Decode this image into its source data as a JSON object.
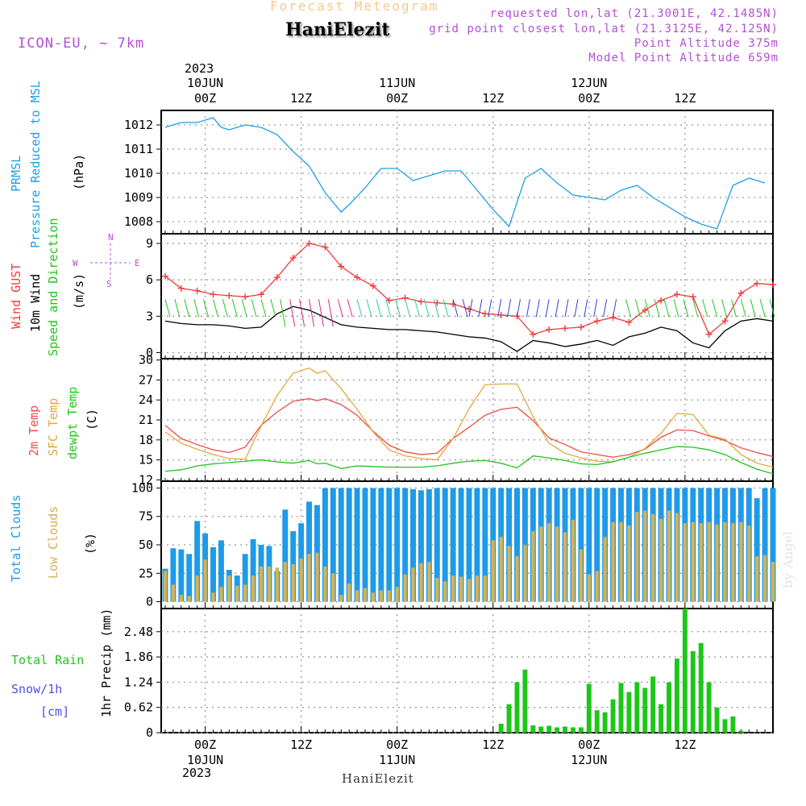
{
  "header": {
    "title": "Forecast Meteogram",
    "station": "HaniElezit",
    "model": "ICON-EU, ~ 7km",
    "requested": "requested lon,lat (21.3001E, 42.1485N)",
    "gridpoint": "grid point closest lon,lat (21.3125E, 42.125N)",
    "point_alt": "Point Altitude 375m",
    "model_alt": "Model Point Altitude 659m",
    "watermark": "by Angel"
  },
  "time_axis": {
    "top_year": "2023",
    "ticks": [
      {
        "hour": 0,
        "top": [
          "10JUN",
          "00Z"
        ],
        "bottom": [
          "00Z",
          "10JUN"
        ]
      },
      {
        "hour": 12,
        "top": [
          "12Z"
        ],
        "bottom": [
          "12Z"
        ]
      },
      {
        "hour": 24,
        "top": [
          "11JUN",
          "00Z"
        ],
        "bottom": [
          "00Z",
          "11JUN"
        ]
      },
      {
        "hour": 36,
        "top": [
          "12Z"
        ],
        "bottom": [
          "12Z"
        ]
      },
      {
        "hour": 48,
        "top": [
          "12JUN",
          "00Z"
        ],
        "bottom": [
          "00Z",
          "12JUN"
        ]
      },
      {
        "hour": 60,
        "top": [
          "12Z"
        ],
        "bottom": [
          "12Z"
        ]
      }
    ],
    "bottom_year": "2023",
    "range_hours": [
      -5.5,
      71
    ]
  },
  "panel_labels": {
    "pressure": {
      "l1": "PRMSL",
      "l2": "Pressure Reduced to MSL",
      "unit": "(hPa)"
    },
    "wind": {
      "l1": "Wind GUST",
      "l2": "10m Wind",
      "l3": "Speed and Direction",
      "unit": "(m/s)",
      "compass_n": "N",
      "compass_s": "S",
      "compass_w": "W",
      "compass_e": "E"
    },
    "temp": {
      "l1": "2m Temp",
      "l2": "SFC Temp",
      "l3": "dewpt Temp",
      "unit": "(C)"
    },
    "clouds": {
      "l1": "Total Clouds",
      "l2": "Low Clouds",
      "unit": "(%)"
    },
    "precip": {
      "l1": "Total  Rain",
      "l2": "Snow/1h",
      "l3": "[cm]",
      "unit": "1hr Precip (mm)"
    }
  },
  "colors": {
    "pressure": "#1e9fe6",
    "gust": "#f03c3c",
    "wind": "#000000",
    "t2m": "#ef4b47",
    "tsfc": "#e3a73f",
    "dewpt": "#22c41c",
    "total_clouds": "#1f9ae8",
    "low_clouds": "#d2b256",
    "rain": "#1fc61a",
    "grid": "#9a9a9a"
  },
  "chart_data": [
    {
      "type": "line",
      "title": "PRMSL Pressure Reduced to MSL",
      "ylabel": "hPa",
      "ylim": [
        1007.5,
        1012.6
      ],
      "yticks": [
        1008,
        1009,
        1010,
        1011,
        1012
      ],
      "x_hours": [
        -5,
        -3,
        -1,
        1,
        2,
        3,
        5,
        7,
        9,
        11,
        13,
        15,
        17,
        18,
        20,
        22,
        24,
        26,
        28,
        30,
        32,
        34,
        36,
        38,
        40,
        42,
        44,
        46,
        48,
        50,
        52,
        54,
        56,
        58,
        60,
        62,
        64,
        66,
        68,
        70
      ],
      "series": [
        {
          "name": "PRMSL",
          "values": [
            1011.9,
            1012.1,
            1012.1,
            1012.3,
            1011.9,
            1011.8,
            1012.0,
            1011.9,
            1011.6,
            1010.9,
            1010.3,
            1009.2,
            1008.4,
            1008.7,
            1009.4,
            1010.2,
            1010.2,
            1009.7,
            1009.9,
            1010.1,
            1010.1,
            1009.3,
            1008.5,
            1007.8,
            1009.8,
            1010.2,
            1009.6,
            1009.1,
            1009.0,
            1008.9,
            1009.3,
            1009.5,
            1009.0,
            1008.6,
            1008.2,
            1007.9,
            1007.7,
            1009.5,
            1009.8,
            1009.6
          ]
        }
      ]
    },
    {
      "type": "line",
      "title": "Wind GUST / 10m Wind Speed and Direction",
      "ylabel": "m/s",
      "ylim": [
        -0.5,
        9.8
      ],
      "yticks": [
        0,
        3,
        6,
        9
      ],
      "x_hours": [
        -5,
        -3,
        -1,
        1,
        3,
        5,
        7,
        9,
        11,
        13,
        15,
        17,
        19,
        21,
        23,
        25,
        27,
        29,
        31,
        33,
        35,
        37,
        39,
        41,
        43,
        45,
        47,
        49,
        51,
        53,
        55,
        57,
        59,
        61,
        63,
        65,
        67,
        69,
        71
      ],
      "series": [
        {
          "name": "Wind GUST",
          "values": [
            6.3,
            5.3,
            5.1,
            4.8,
            4.7,
            4.6,
            4.8,
            6.2,
            7.8,
            9.0,
            8.7,
            7.1,
            6.2,
            5.5,
            4.3,
            4.5,
            4.2,
            4.1,
            4.0,
            3.6,
            3.2,
            3.1,
            3.0,
            1.5,
            1.9,
            2.0,
            2.1,
            2.6,
            2.9,
            2.5,
            3.5,
            4.3,
            4.8,
            4.6,
            1.5,
            2.6,
            4.9,
            5.7,
            5.6
          ]
        },
        {
          "name": "10m Wind",
          "values": [
            2.6,
            2.4,
            2.3,
            2.3,
            2.2,
            2.0,
            2.1,
            3.2,
            3.8,
            3.5,
            2.9,
            2.3,
            2.1,
            2.0,
            1.9,
            1.9,
            1.8,
            1.7,
            1.5,
            1.3,
            1.2,
            0.9,
            0.1,
            1.0,
            0.8,
            0.5,
            0.7,
            1.0,
            0.6,
            1.3,
            1.6,
            2.1,
            1.8,
            0.8,
            0.4,
            1.8,
            2.6,
            2.8,
            2.6
          ]
        }
      ]
    },
    {
      "type": "line",
      "title": "2m Temp / SFC Temp / dewpt Temp",
      "ylabel": "C",
      "ylim": [
        11.8,
        30.2
      ],
      "yticks": [
        12,
        15,
        18,
        21,
        24,
        27,
        30
      ],
      "x_hours": [
        -5,
        -3,
        -1,
        1,
        3,
        5,
        7,
        9,
        11,
        13,
        14,
        15,
        17,
        19,
        21,
        23,
        25,
        27,
        29,
        31,
        33,
        35,
        37,
        39,
        41,
        43,
        45,
        47,
        49,
        51,
        53,
        55,
        57,
        59,
        61,
        63,
        65,
        67,
        69,
        71
      ],
      "series": [
        {
          "name": "2m Temp",
          "values": [
            20.2,
            18.2,
            17.3,
            16.5,
            16.1,
            16.9,
            20.2,
            22.2,
            23.8,
            24.2,
            23.9,
            24.2,
            23.3,
            21.7,
            19.3,
            17.2,
            16.2,
            15.8,
            16.0,
            18.2,
            19.9,
            21.7,
            22.6,
            22.9,
            20.9,
            18.3,
            17.3,
            16.2,
            15.8,
            15.4,
            15.8,
            16.6,
            18.4,
            19.5,
            19.4,
            18.6,
            17.9,
            16.8,
            16.1,
            15.5
          ]
        },
        {
          "name": "SFC Temp",
          "values": [
            19.2,
            17.5,
            16.6,
            15.8,
            15.2,
            15.1,
            20.1,
            24.7,
            28.0,
            28.8,
            28.0,
            28.4,
            25.7,
            22.6,
            19.2,
            16.5,
            15.6,
            15.2,
            15.0,
            18.2,
            22.7,
            26.3,
            26.4,
            26.4,
            21.5,
            17.5,
            16.0,
            15.3,
            14.8,
            14.7,
            15.4,
            16.7,
            19.0,
            22.0,
            21.8,
            18.7,
            18.1,
            15.8,
            14.5,
            13.9
          ]
        },
        {
          "name": "dewpt Temp",
          "values": [
            13.3,
            13.5,
            14.1,
            14.4,
            14.6,
            14.8,
            15.0,
            14.7,
            14.5,
            14.9,
            14.4,
            14.5,
            13.7,
            14.1,
            14.0,
            13.9,
            13.9,
            13.9,
            14.1,
            14.5,
            14.8,
            14.9,
            14.5,
            13.8,
            15.6,
            15.3,
            14.9,
            14.4,
            14.3,
            14.7,
            15.4,
            16.0,
            16.5,
            17.0,
            16.9,
            16.5,
            15.8,
            14.6,
            13.6,
            12.9
          ]
        }
      ]
    },
    {
      "type": "bar",
      "title": "Total Clouds / Low Clouds",
      "ylabel": "%",
      "ylim": [
        -6,
        106
      ],
      "yticks": [
        0,
        25,
        50,
        75,
        100
      ],
      "x_hours": [
        -5,
        -4,
        -3,
        -2,
        -1,
        0,
        1,
        2,
        3,
        4,
        5,
        6,
        7,
        8,
        9,
        10,
        11,
        12,
        13,
        14,
        15,
        16,
        17,
        18,
        19,
        20,
        21,
        22,
        23,
        24,
        25,
        26,
        27,
        28,
        29,
        30,
        31,
        32,
        33,
        34,
        35,
        36,
        37,
        38,
        39,
        40,
        41,
        42,
        43,
        44,
        45,
        46,
        47,
        48,
        49,
        50,
        51,
        52,
        53,
        54,
        55,
        56,
        57,
        58,
        59,
        60,
        61,
        62,
        63,
        64,
        65,
        66,
        67,
        68,
        69,
        70,
        71
      ],
      "series": [
        {
          "name": "Total Clouds",
          "values": [
            29,
            47,
            46,
            42,
            71,
            60,
            48,
            54,
            28,
            23,
            42,
            55,
            50,
            49,
            27,
            81,
            62,
            69,
            88,
            85,
            100,
            100,
            100,
            100,
            100,
            100,
            100,
            100,
            100,
            100,
            100,
            99,
            98,
            99,
            100,
            100,
            100,
            100,
            100,
            100,
            100,
            100,
            100,
            100,
            100,
            100,
            100,
            100,
            100,
            100,
            100,
            100,
            100,
            100,
            100,
            100,
            100,
            100,
            100,
            100,
            100,
            100,
            100,
            100,
            100,
            100,
            100,
            100,
            100,
            100,
            100,
            100,
            100,
            100,
            91,
            100,
            100
          ]
        },
        {
          "name": "Low Clouds",
          "values": [
            27,
            15,
            6,
            5,
            23,
            37,
            8,
            13,
            23,
            14,
            15,
            23,
            31,
            31,
            30,
            35,
            33,
            38,
            42,
            43,
            31,
            25,
            6,
            16,
            10,
            12,
            8,
            10,
            10,
            13,
            24,
            30,
            34,
            35,
            21,
            18,
            23,
            22,
            20,
            23,
            23,
            54,
            57,
            49,
            40,
            50,
            62,
            66,
            69,
            66,
            61,
            72,
            46,
            24,
            27,
            57,
            70,
            70,
            67,
            79,
            80,
            77,
            73,
            80,
            78,
            69,
            70,
            69,
            70,
            68,
            70,
            69,
            70,
            67,
            40,
            41,
            35
          ]
        }
      ]
    },
    {
      "type": "bar",
      "title": "1hr Precip",
      "ylabel": "1hr Precip (mm)",
      "ylim": [
        0,
        3.05
      ],
      "yticks": [
        0,
        0.62,
        1.24,
        1.86,
        2.48
      ],
      "ytick_labels": [
        "0",
        "0.62",
        "1.24",
        "1.86",
        "2.48"
      ],
      "x_hours": [
        37,
        38,
        39,
        40,
        41,
        42,
        43,
        44,
        45,
        46,
        47,
        48,
        49,
        50,
        51,
        52,
        53,
        54,
        55,
        56,
        57,
        58,
        59,
        60,
        61,
        62,
        63,
        64,
        65,
        66,
        67,
        68,
        69
      ],
      "series": [
        {
          "name": "Total Rain",
          "values": [
            0.22,
            0.7,
            1.24,
            1.55,
            0.18,
            0.15,
            0.17,
            0.13,
            0.15,
            0.13,
            0.13,
            1.2,
            0.55,
            0.5,
            0.82,
            1.22,
            1.0,
            1.24,
            1.1,
            1.38,
            0.7,
            1.24,
            1.82,
            3.05,
            2.0,
            2.2,
            1.24,
            0.62,
            0.33,
            0.4,
            0.05,
            0.0,
            0.0
          ]
        }
      ]
    }
  ]
}
